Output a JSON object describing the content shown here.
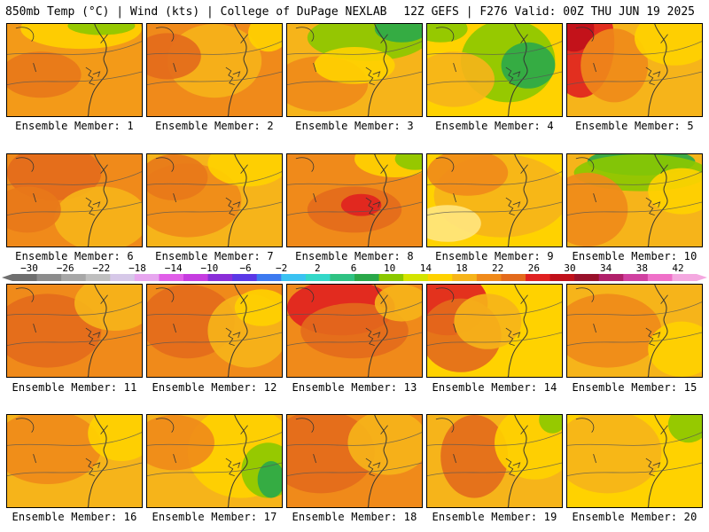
{
  "header": {
    "left": "850mb Temp (°C) | Wind (kts) | College of DuPage NEXLAB",
    "right": "12Z GEFS | F276 Valid: 00Z THU JUN 19 2025"
  },
  "member_label_prefix": "Ensemble Member: ",
  "members": [
    {
      "id": "1",
      "caption": "Ensemble Member: 1",
      "base": "#f39a18",
      "blobs": [
        [
          "#ffd200",
          0.55,
          0.05,
          0.45,
          0.22
        ],
        [
          "#8bc800",
          0.7,
          0.02,
          0.25,
          0.1
        ],
        [
          "#e8781a",
          0.25,
          0.55,
          0.3,
          0.25
        ]
      ]
    },
    {
      "id": "2",
      "caption": "Ensemble Member: 2",
      "base": "#f08a1a",
      "blobs": [
        [
          "#f6b21a",
          0.5,
          0.4,
          0.35,
          0.4
        ],
        [
          "#e36a1c",
          0.15,
          0.35,
          0.25,
          0.25
        ],
        [
          "#ffd200",
          0.9,
          0.1,
          0.15,
          0.2
        ]
      ]
    },
    {
      "id": "3",
      "caption": "Ensemble Member: 3",
      "base": "#f6b41a",
      "blobs": [
        [
          "#8bc800",
          0.6,
          0.15,
          0.45,
          0.25
        ],
        [
          "#2aa84a",
          0.85,
          0.05,
          0.2,
          0.15
        ],
        [
          "#f08a1a",
          0.25,
          0.65,
          0.35,
          0.3
        ],
        [
          "#ffd200",
          0.5,
          0.45,
          0.3,
          0.2
        ]
      ]
    },
    {
      "id": "4",
      "caption": "Ensemble Member: 4",
      "base": "#ffd200",
      "blobs": [
        [
          "#8bc800",
          0.6,
          0.4,
          0.35,
          0.45
        ],
        [
          "#2aa84a",
          0.75,
          0.45,
          0.2,
          0.25
        ],
        [
          "#f6b41a",
          0.2,
          0.6,
          0.3,
          0.3
        ],
        [
          "#8bc800",
          0.1,
          0.05,
          0.2,
          0.15
        ]
      ]
    },
    {
      "id": "5",
      "caption": "Ensemble Member: 5",
      "base": "#f6b41a",
      "blobs": [
        [
          "#e02020",
          0.1,
          0.2,
          0.25,
          0.6
        ],
        [
          "#c0101a",
          0.05,
          0.05,
          0.15,
          0.25
        ],
        [
          "#f08a1a",
          0.35,
          0.45,
          0.25,
          0.4
        ],
        [
          "#ffd200",
          0.8,
          0.15,
          0.3,
          0.3
        ]
      ]
    },
    {
      "id": "6",
      "caption": "Ensemble Member: 6",
      "base": "#f08a1a",
      "blobs": [
        [
          "#e36a1c",
          0.35,
          0.2,
          0.35,
          0.3
        ],
        [
          "#f6b41a",
          0.7,
          0.7,
          0.35,
          0.35
        ],
        [
          "#e8781a",
          0.15,
          0.6,
          0.25,
          0.25
        ]
      ]
    },
    {
      "id": "7",
      "caption": "Ensemble Member: 7",
      "base": "#f6b41a",
      "blobs": [
        [
          "#f08a1a",
          0.3,
          0.5,
          0.4,
          0.4
        ],
        [
          "#ffd200",
          0.75,
          0.1,
          0.3,
          0.25
        ],
        [
          "#e8781a",
          0.2,
          0.25,
          0.25,
          0.25
        ]
      ]
    },
    {
      "id": "8",
      "caption": "Ensemble Member: 8",
      "base": "#f08a1a",
      "blobs": [
        [
          "#e36a1c",
          0.5,
          0.6,
          0.35,
          0.25
        ],
        [
          "#e02020",
          0.55,
          0.55,
          0.15,
          0.12
        ],
        [
          "#ffd200",
          0.8,
          0.05,
          0.3,
          0.2
        ],
        [
          "#8bc800",
          0.95,
          0.05,
          0.15,
          0.12
        ]
      ]
    },
    {
      "id": "9",
      "caption": "Ensemble Member: 9",
      "base": "#ffd200",
      "blobs": [
        [
          "#f6b41a",
          0.55,
          0.45,
          0.5,
          0.45
        ],
        [
          "#f08a1a",
          0.3,
          0.2,
          0.3,
          0.25
        ],
        [
          "#ffe680",
          0.15,
          0.75,
          0.25,
          0.2
        ]
      ]
    },
    {
      "id": "10",
      "caption": "Ensemble Member: 10",
      "base": "#f6b41a",
      "blobs": [
        [
          "#2aa84a",
          0.55,
          0.08,
          0.4,
          0.15
        ],
        [
          "#8bc800",
          0.55,
          0.2,
          0.5,
          0.2
        ],
        [
          "#f08a1a",
          0.15,
          0.6,
          0.3,
          0.4
        ],
        [
          "#ffd200",
          0.85,
          0.4,
          0.25,
          0.25
        ]
      ]
    },
    {
      "id": "11",
      "caption": "Ensemble Member: 11",
      "base": "#f08a1a",
      "blobs": [
        [
          "#e36a1c",
          0.3,
          0.5,
          0.4,
          0.4
        ],
        [
          "#f6b41a",
          0.8,
          0.2,
          0.3,
          0.3
        ]
      ]
    },
    {
      "id": "12",
      "caption": "Ensemble Member: 12",
      "base": "#f08a1a",
      "blobs": [
        [
          "#e36a1c",
          0.3,
          0.4,
          0.35,
          0.4
        ],
        [
          "#f6b41a",
          0.75,
          0.5,
          0.3,
          0.4
        ],
        [
          "#ffd200",
          0.85,
          0.25,
          0.2,
          0.2
        ]
      ]
    },
    {
      "id": "13",
      "caption": "Ensemble Member: 13",
      "base": "#f08a1a",
      "blobs": [
        [
          "#e02020",
          0.4,
          0.25,
          0.4,
          0.3
        ],
        [
          "#e36a1c",
          0.5,
          0.5,
          0.4,
          0.3
        ],
        [
          "#f6b41a",
          0.85,
          0.2,
          0.2,
          0.2
        ]
      ]
    },
    {
      "id": "14",
      "caption": "Ensemble Member: 14",
      "base": "#ffd200",
      "blobs": [
        [
          "#e02020",
          0.15,
          0.2,
          0.3,
          0.35
        ],
        [
          "#e36a1c",
          0.25,
          0.55,
          0.3,
          0.4
        ],
        [
          "#f6b41a",
          0.45,
          0.4,
          0.25,
          0.3
        ]
      ]
    },
    {
      "id": "15",
      "caption": "Ensemble Member: 15",
      "base": "#f6b41a",
      "blobs": [
        [
          "#f08a1a",
          0.3,
          0.5,
          0.4,
          0.4
        ],
        [
          "#ffd200",
          0.85,
          0.7,
          0.25,
          0.3
        ]
      ]
    },
    {
      "id": "16",
      "caption": "Ensemble Member: 16",
      "base": "#f6b41a",
      "blobs": [
        [
          "#f08a1a",
          0.3,
          0.35,
          0.4,
          0.4
        ],
        [
          "#ffd200",
          0.85,
          0.2,
          0.25,
          0.3
        ]
      ]
    },
    {
      "id": "17",
      "caption": "Ensemble Member: 17",
      "base": "#f6b41a",
      "blobs": [
        [
          "#ffd200",
          0.7,
          0.4,
          0.4,
          0.5
        ],
        [
          "#8bc800",
          0.9,
          0.6,
          0.2,
          0.3
        ],
        [
          "#2aa84a",
          0.92,
          0.7,
          0.1,
          0.2
        ],
        [
          "#f08a1a",
          0.2,
          0.3,
          0.3,
          0.3
        ]
      ]
    },
    {
      "id": "18",
      "caption": "Ensemble Member: 18",
      "base": "#f08a1a",
      "blobs": [
        [
          "#e36a1c",
          0.25,
          0.4,
          0.4,
          0.45
        ],
        [
          "#f6b41a",
          0.75,
          0.3,
          0.3,
          0.35
        ]
      ]
    },
    {
      "id": "19",
      "caption": "Ensemble Member: 19",
      "base": "#f6b41a",
      "blobs": [
        [
          "#e36a1c",
          0.35,
          0.45,
          0.25,
          0.45
        ],
        [
          "#ffd200",
          0.8,
          0.3,
          0.3,
          0.4
        ],
        [
          "#8bc800",
          0.93,
          0.05,
          0.1,
          0.15
        ]
      ]
    },
    {
      "id": "20",
      "caption": "Ensemble Member: 20",
      "base": "#ffd200",
      "blobs": [
        [
          "#f6b41a",
          0.3,
          0.4,
          0.4,
          0.45
        ],
        [
          "#8bc800",
          0.9,
          0.1,
          0.15,
          0.2
        ]
      ]
    }
  ],
  "colorbar": {
    "labels": [
      "−30",
      "−26",
      "−22",
      "−18",
      "−14",
      "−10",
      "−6",
      "−2",
      "2",
      "6",
      "10",
      "14",
      "18",
      "22",
      "26",
      "30",
      "34",
      "38",
      "42"
    ],
    "colors": [
      "#6f6f6f",
      "#8c8c8c",
      "#a7a7a7",
      "#bfbfbf",
      "#d6c8e8",
      "#e7a6ef",
      "#e05ee8",
      "#c63ce0",
      "#8a2ed8",
      "#5a38e6",
      "#3c7af0",
      "#3ac2f2",
      "#33d8c8",
      "#2fc283",
      "#2aa84a",
      "#8bc800",
      "#d4e400",
      "#ffd200",
      "#f6b41a",
      "#f08a1a",
      "#e36a1c",
      "#e02020",
      "#c0101a",
      "#98102a",
      "#b0206a",
      "#d040a0",
      "#ef70c8",
      "#f4a8e0"
    ]
  }
}
